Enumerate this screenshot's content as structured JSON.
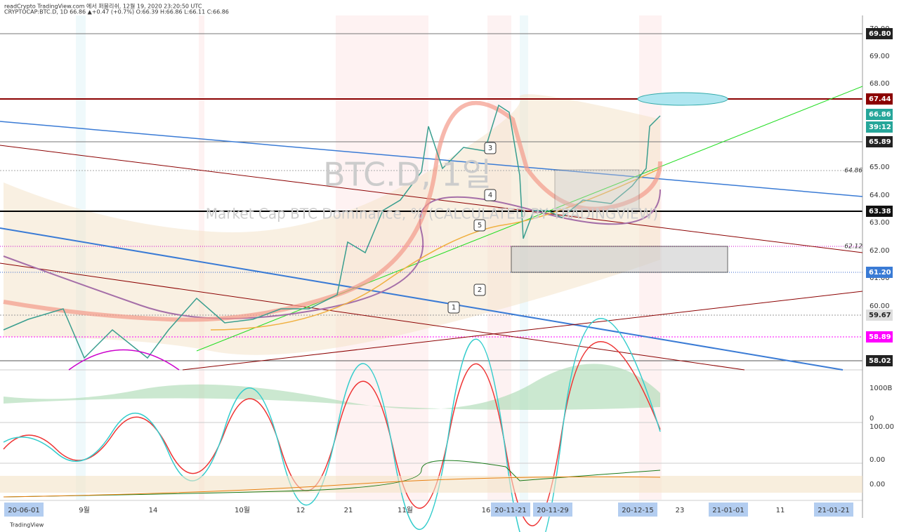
{
  "header": {
    "line1": "readCrypto TradingView.com 에서 퍼블리쉬, 12월 19, 2020 23:20:50 UTC",
    "line2": "CRYPTOCAP:BTC.D, 1D 66.86 ▲+0.47 (+0.7%) O:66.39 H:66.86 L:66.11 C:66.86"
  },
  "watermark": {
    "symbol": "BTC.D, 1일",
    "name": "Market Cap BTC Dominance, % (CALCULATED BY TRADINGVIEW)"
  },
  "price_axis": {
    "ticks": [
      "70.00",
      "69.00",
      "68.00",
      "65.00",
      "64.00",
      "63.00",
      "62.00",
      "61.00",
      "60.00"
    ],
    "badges": [
      "69.80",
      "67.44",
      "66.86",
      "39:12",
      "65.89",
      "63.38",
      "61.20",
      "59.67",
      "58.89",
      "58.02"
    ]
  },
  "line_labels": [
    "64.86",
    "62.12"
  ],
  "wave_labels": [
    "1",
    "2",
    "3",
    "4",
    "5"
  ],
  "sub_axes": {
    "volume": [
      "1000B",
      "0"
    ],
    "stoch": [
      "100.00",
      "0.00"
    ],
    "osc": [
      "0.00"
    ]
  },
  "date_axis": [
    "20-06-01",
    "9월",
    "14",
    "10월",
    "12",
    "21",
    "11월",
    "16",
    "20-11-21",
    "20-11-29",
    "20-12-15",
    "23",
    "21-01-01",
    "11",
    "21-01-21"
  ],
  "footer": "TradingView"
}
